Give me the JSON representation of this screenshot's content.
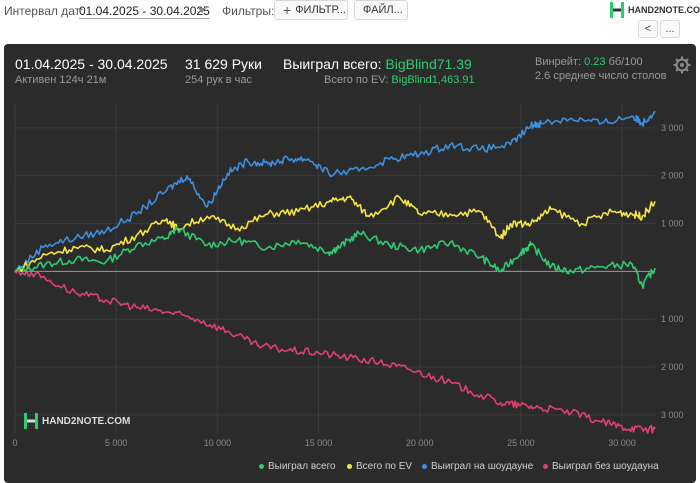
{
  "toolbar": {
    "interval_label": "Интервал дат:",
    "interval_value": "01.04.2025 - 30.04.2025",
    "filters_label": "Фильтры:",
    "filter_button": "ФИЛЬТР...",
    "file_button": "ФАЙЛ...",
    "brand": "HAND2NOTE.COM",
    "nav_prev": "<",
    "nav_more": "..."
  },
  "summary": {
    "date_range": "01.04.2025 - 30.04.2025",
    "active_time": "Активен 124ч 21м",
    "hands": "31 629 Руки",
    "hands_per_hour": "254 рук в час",
    "won_total_label": "Выиграл всего:",
    "won_total_value": "BigBlind71.39",
    "ev_total_label": "Всего по EV:",
    "ev_total_value": "BigBlind1,463.91",
    "winrate_label": "Винрейт:",
    "winrate_value": "0.23",
    "winrate_unit": "бб/100",
    "avg_tables": "2.6 среднее число столов"
  },
  "watermark": "HAND2NOTE.COM",
  "colors": {
    "won_total": "#2ecc71",
    "ev_total": "#f5e642",
    "showdown": "#3d8fe0",
    "no_showdown": "#e0416e",
    "panel_bg": "#2b2b2b"
  },
  "chart_data": {
    "type": "line",
    "x_ticks": [
      "0",
      "5 000",
      "10 000",
      "15 000",
      "20 000",
      "25 000",
      "30 000"
    ],
    "y_ticks": [
      "3 000",
      "2 000",
      "1 000",
      "1 000",
      "2 000",
      "3 000"
    ],
    "xlim": [
      0,
      31629
    ],
    "ylim": [
      -3400,
      3500
    ],
    "grid": true,
    "legend_position": "bottom-right",
    "series": [
      {
        "name": "Выиграл всего",
        "color": "#2ecc71",
        "x": [
          0,
          1500,
          3000,
          4500,
          6000,
          7500,
          8000,
          9500,
          11000,
          12500,
          14000,
          15500,
          16000,
          17000,
          18500,
          20000,
          21500,
          23000,
          24000,
          25000,
          25500,
          26500,
          27500,
          29000,
          30500,
          31000,
          31629
        ],
        "y": [
          0,
          150,
          250,
          200,
          550,
          700,
          900,
          550,
          650,
          500,
          650,
          400,
          500,
          800,
          550,
          450,
          600,
          300,
          0,
          400,
          550,
          100,
          0,
          100,
          150,
          -300,
          71
        ]
      },
      {
        "name": "Всего по EV",
        "color": "#f5e642",
        "x": [
          0,
          1500,
          3000,
          4500,
          6000,
          7500,
          8000,
          9500,
          11000,
          12500,
          14000,
          15500,
          16500,
          17500,
          19000,
          20000,
          21500,
          23000,
          24000,
          24500,
          25500,
          26500,
          28000,
          29500,
          30500,
          31000,
          31629
        ],
        "y": [
          0,
          350,
          500,
          450,
          750,
          1100,
          900,
          1150,
          900,
          1200,
          1250,
          1450,
          1550,
          1150,
          1550,
          1200,
          1200,
          1250,
          700,
          1000,
          1000,
          1300,
          1000,
          1250,
          1200,
          1150,
          1464
        ]
      },
      {
        "name": "Выиграл на шоудауне",
        "color": "#3d8fe0",
        "x": [
          0,
          1500,
          3000,
          4500,
          6000,
          7500,
          8500,
          9500,
          10500,
          11500,
          12500,
          13500,
          14500,
          15500,
          17000,
          18500,
          20000,
          21500,
          23000,
          24500,
          25500,
          26000,
          27500,
          29000,
          30500,
          31000,
          31629
        ],
        "y": [
          0,
          550,
          700,
          850,
          1200,
          1700,
          2000,
          1350,
          2050,
          2300,
          2250,
          2350,
          2350,
          2050,
          2100,
          2350,
          2450,
          2650,
          2550,
          2650,
          3050,
          3100,
          3200,
          3100,
          3250,
          3100,
          3350
        ]
      },
      {
        "name": "Выиграл без шоудауна",
        "color": "#e0416e",
        "x": [
          0,
          1000,
          3000,
          4500,
          6000,
          7500,
          9000,
          10500,
          12000,
          13500,
          15000,
          16500,
          18000,
          19500,
          21000,
          22500,
          24000,
          25000,
          26000,
          27500,
          29000,
          30000,
          31000,
          31629
        ],
        "y": [
          0,
          -50,
          -450,
          -600,
          -750,
          -850,
          -1000,
          -1250,
          -1550,
          -1650,
          -1700,
          -1800,
          -1900,
          -2050,
          -2250,
          -2500,
          -2750,
          -2800,
          -2850,
          -2950,
          -3150,
          -3250,
          -3300,
          -3300
        ]
      }
    ]
  }
}
